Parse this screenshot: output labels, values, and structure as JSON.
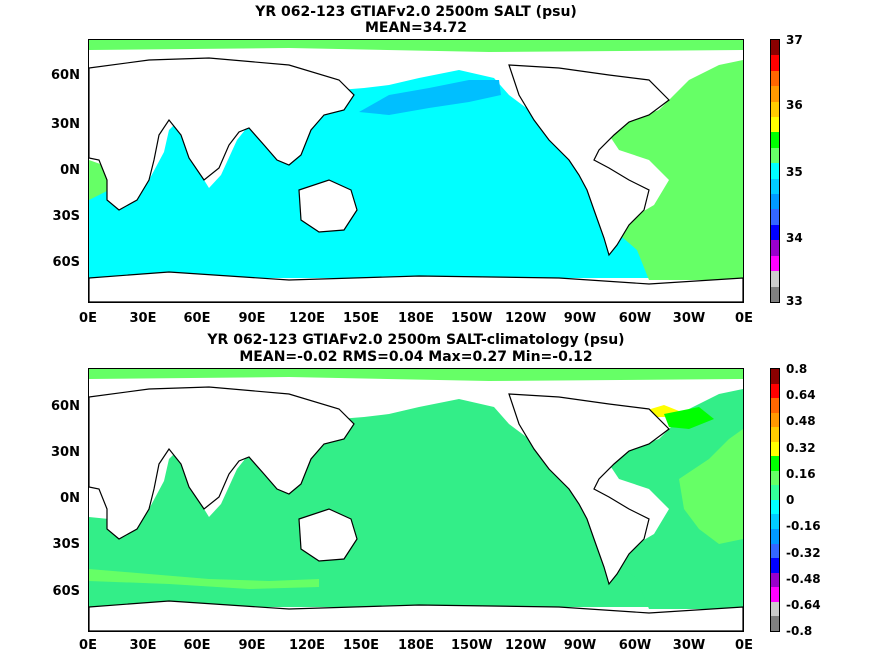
{
  "panels": [
    {
      "title_line1": "YR 062-123 GTIAFv2.0 2500m SALT (psu)",
      "title_line2": "MEAN=34.72",
      "lat_labels": [
        "60N",
        "30N",
        "0N",
        "30S",
        "60S"
      ],
      "lon_labels": [
        "0E",
        "30E",
        "60E",
        "90E",
        "120E",
        "150E",
        "180E",
        "150W",
        "120W",
        "90W",
        "60W",
        "30W",
        "0E"
      ],
      "colorbar_ticks": [
        "37",
        "36",
        "35",
        "34",
        "33"
      ],
      "colorbar_colors": [
        "#8b0000",
        "#ff0000",
        "#ff6600",
        "#ff9900",
        "#ffcc00",
        "#ffff00",
        "#00ff00",
        "#66ff66",
        "#00ffff",
        "#00ccff",
        "#0099ff",
        "#3366ff",
        "#0000ff",
        "#9900cc",
        "#ff00ff",
        "#cccccc",
        "#808080"
      ],
      "ocean_color": "#00ffff",
      "fresh_color": "#00bfff",
      "atlantic_color": "#66ff66"
    },
    {
      "title_line1": "YR 062-123 GTIAFv2.0 2500m SALT-climatology (psu)",
      "title_line2": "MEAN=-0.02   RMS=0.04   Max=0.27   Min=-0.12",
      "lat_labels": [
        "60N",
        "30N",
        "0N",
        "30S",
        "60S"
      ],
      "lon_labels": [
        "0E",
        "30E",
        "60E",
        "90E",
        "120E",
        "150E",
        "180E",
        "150W",
        "120W",
        "90W",
        "60W",
        "30W",
        "0E"
      ],
      "colorbar_ticks": [
        "0.8",
        "0.64",
        "0.48",
        "0.32",
        "0.16",
        "0",
        "-0.16",
        "-0.32",
        "-0.48",
        "-0.64",
        "-0.8"
      ],
      "colorbar_colors": [
        "#8b0000",
        "#ff0000",
        "#ff6600",
        "#ff9900",
        "#ffcc00",
        "#ffff00",
        "#00ff00",
        "#66ff66",
        "#33ff99",
        "#00ffff",
        "#00ccff",
        "#0099ff",
        "#3366ff",
        "#0000ff",
        "#9900cc",
        "#ff00ff",
        "#cccccc",
        "#808080"
      ],
      "ocean_color": "#33ee88",
      "fresh_color": "#66ff66",
      "atlantic_color": "#66ff66"
    }
  ]
}
